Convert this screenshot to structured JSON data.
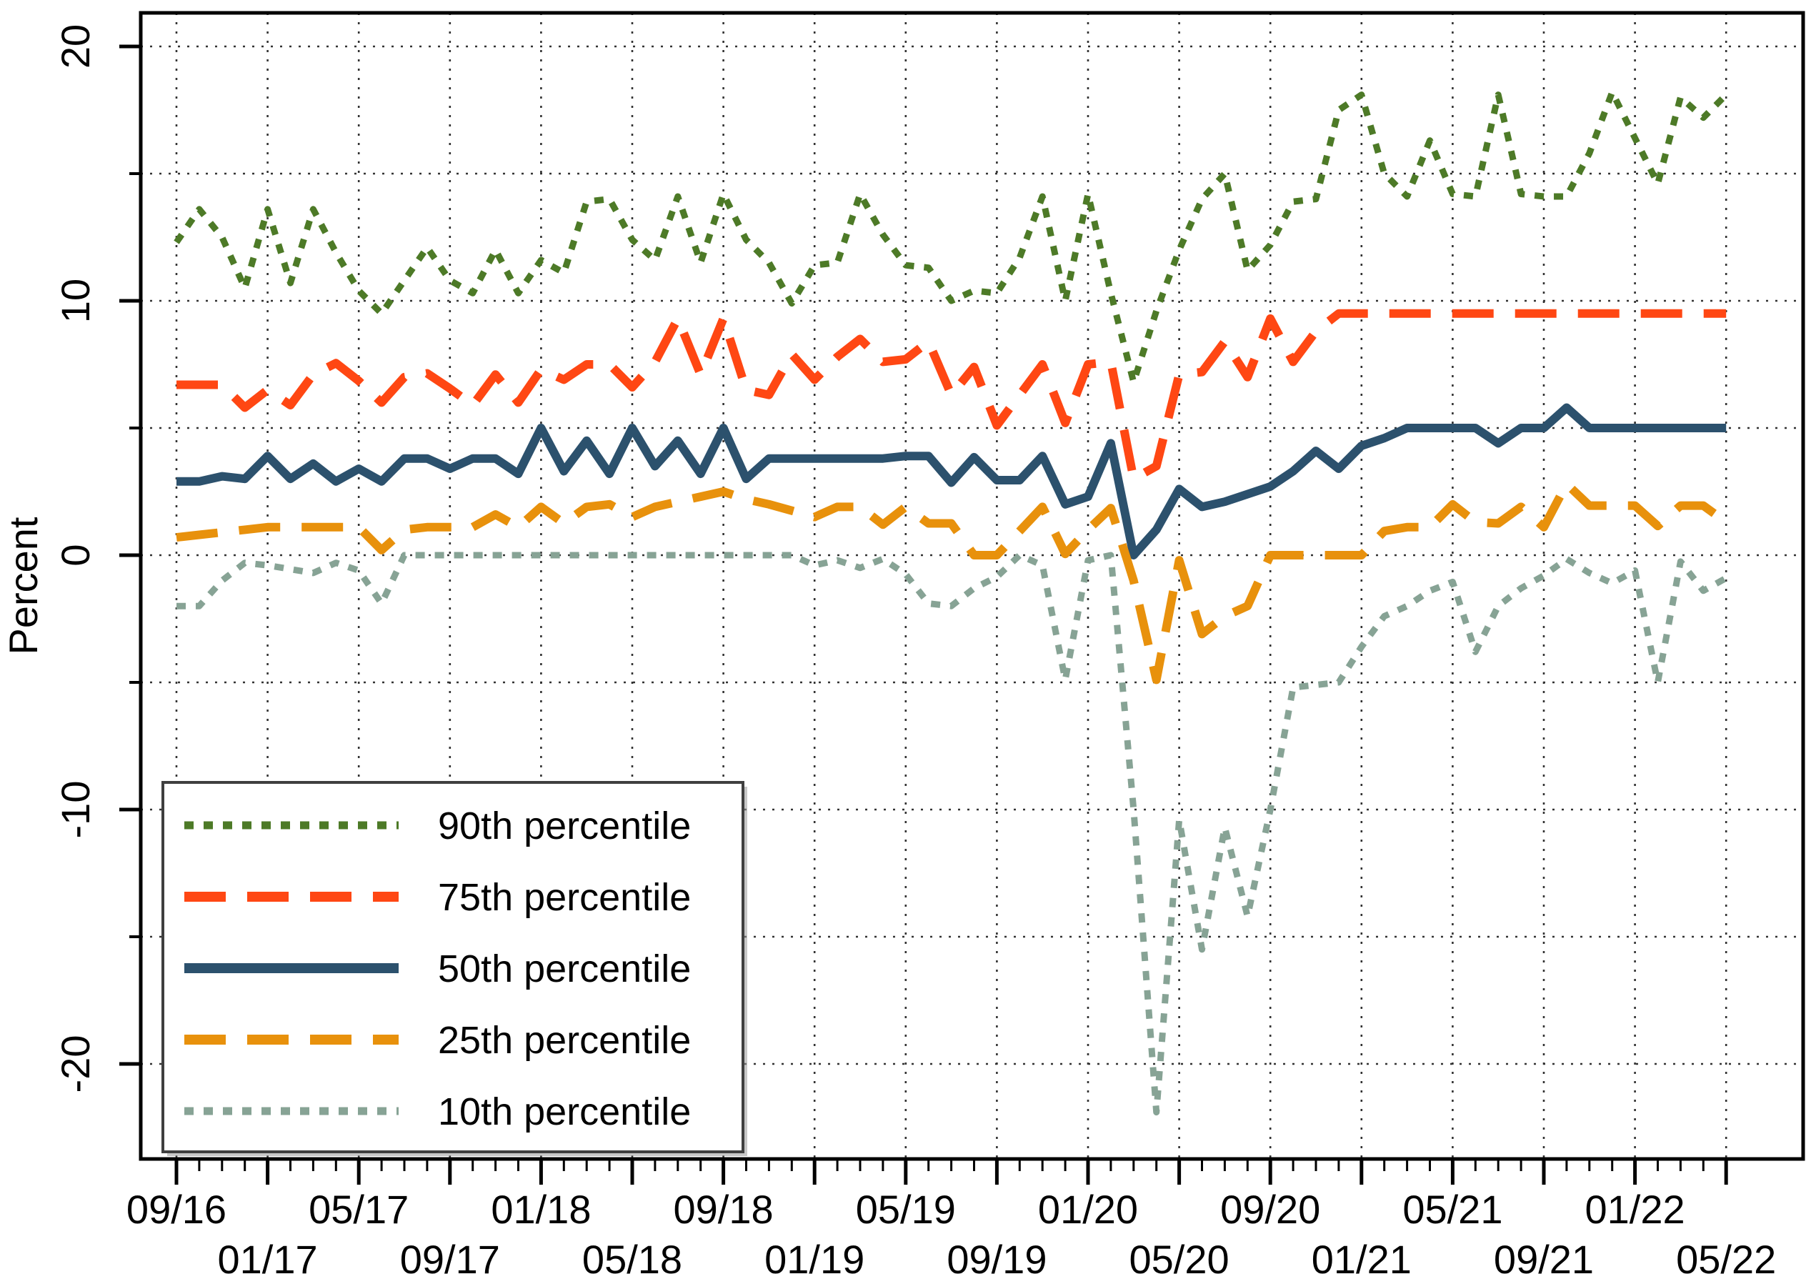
{
  "chart_data": {
    "type": "line",
    "title": "",
    "xlabel": "",
    "ylabel": "Percent",
    "grid": "dotted",
    "legend_position": "inside-bottom-left",
    "ylim": [
      -23.7,
      21.3
    ],
    "yticks_major": [
      20,
      10,
      0,
      -10,
      -20
    ],
    "ytick_labels": [
      "20",
      "10",
      "0",
      "-10",
      "-20"
    ],
    "yticks_minor": [
      15,
      5,
      -5,
      -15
    ],
    "x_tick_row1": {
      "labels": [
        "09/16",
        "05/17",
        "01/18",
        "09/18",
        "05/19",
        "01/20",
        "09/20",
        "05/21",
        "01/22"
      ],
      "month_index": [
        0,
        8,
        16,
        24,
        32,
        40,
        48,
        56,
        64
      ]
    },
    "x_tick_row2": {
      "labels": [
        "01/17",
        "09/17",
        "05/18",
        "01/19",
        "09/19",
        "05/20",
        "01/21",
        "09/21",
        "05/22"
      ],
      "month_index": [
        4,
        12,
        20,
        28,
        36,
        44,
        52,
        60,
        68
      ]
    },
    "x": [
      "09/16",
      "10/16",
      "11/16",
      "12/16",
      "01/17",
      "02/17",
      "03/17",
      "04/17",
      "05/17",
      "06/17",
      "07/17",
      "08/17",
      "09/17",
      "10/17",
      "11/17",
      "12/17",
      "01/18",
      "02/18",
      "03/18",
      "04/18",
      "05/18",
      "06/18",
      "07/18",
      "08/18",
      "09/18",
      "10/18",
      "11/18",
      "12/18",
      "01/19",
      "02/19",
      "03/19",
      "04/19",
      "05/19",
      "06/19",
      "07/19",
      "08/19",
      "09/19",
      "10/19",
      "11/19",
      "12/19",
      "01/20",
      "02/20",
      "03/20",
      "04/20",
      "05/20",
      "06/20",
      "07/20",
      "08/20",
      "09/20",
      "10/20",
      "11/20",
      "12/20",
      "01/21",
      "02/21",
      "03/21",
      "04/21",
      "05/21",
      "06/21",
      "07/21",
      "08/21",
      "09/21",
      "10/21",
      "11/21",
      "12/21",
      "01/22",
      "02/22",
      "03/22",
      "04/22",
      "05/22"
    ],
    "series": [
      {
        "name": "90th percentile",
        "color": "#4d7a27",
        "style": "dotted",
        "width": 9,
        "values": [
          12.3,
          13.6,
          12.5,
          10.5,
          13.6,
          10.7,
          13.6,
          11.9,
          10.4,
          9.5,
          10.8,
          12.1,
          10.8,
          10.3,
          12.0,
          10.3,
          11.6,
          11.1,
          13.9,
          14.0,
          12.4,
          11.6,
          14.1,
          11.5,
          14.2,
          12.4,
          11.5,
          9.9,
          11.4,
          11.5,
          14.2,
          12.6,
          11.4,
          11.3,
          10.0,
          10.4,
          10.3,
          11.7,
          14.1,
          10.0,
          14.2,
          10.3,
          6.8,
          9.6,
          12.0,
          14.0,
          15.0,
          11.2,
          12.2,
          13.9,
          14.0,
          17.5,
          18.1,
          15.0,
          14.1,
          16.3,
          14.2,
          14.1,
          18.1,
          14.2,
          14.1,
          14.1,
          15.8,
          18.2,
          16.4,
          14.6,
          18.0,
          17.2,
          18.1
        ]
      },
      {
        "name": "75th percentile",
        "color": "#ff4713",
        "style": "longdash",
        "width": 12,
        "values": [
          6.7,
          6.7,
          6.7,
          5.8,
          6.5,
          5.9,
          7.1,
          7.55,
          6.85,
          6.0,
          7.0,
          7.15,
          6.55,
          5.9,
          7.1,
          6.0,
          7.3,
          6.9,
          7.5,
          7.5,
          6.6,
          7.6,
          9.3,
          7.1,
          9.3,
          6.5,
          6.3,
          7.9,
          6.9,
          7.8,
          8.5,
          7.6,
          7.7,
          8.4,
          6.3,
          7.4,
          5.1,
          6.3,
          7.5,
          5.2,
          7.5,
          7.6,
          3.0,
          3.5,
          7.1,
          7.2,
          8.4,
          7.0,
          9.3,
          7.6,
          8.8,
          9.5,
          9.5,
          9.5,
          9.5,
          9.5,
          9.5,
          9.5,
          9.5,
          9.5,
          9.5,
          9.5,
          9.5,
          9.5,
          9.5,
          9.5,
          9.5,
          9.5,
          9.5
        ]
      },
      {
        "name": "50th percentile",
        "color": "#2c516d",
        "style": "solid",
        "width": 12,
        "values": [
          2.9,
          2.9,
          3.1,
          3.0,
          3.9,
          3.0,
          3.6,
          2.9,
          3.4,
          2.9,
          3.8,
          3.8,
          3.4,
          3.8,
          3.8,
          3.2,
          5.0,
          3.3,
          4.5,
          3.2,
          5.0,
          3.5,
          4.5,
          3.2,
          5.0,
          3.0,
          3.8,
          3.8,
          3.8,
          3.8,
          3.8,
          3.8,
          3.9,
          3.9,
          2.85,
          3.85,
          2.95,
          2.95,
          3.9,
          2.0,
          2.3,
          4.4,
          0.0,
          1.0,
          2.6,
          1.9,
          2.1,
          2.4,
          2.7,
          3.3,
          4.1,
          3.4,
          4.3,
          4.6,
          5.0,
          5.0,
          5.0,
          5.0,
          4.4,
          5.0,
          5.0,
          5.8,
          5.0,
          5.0,
          5.0,
          5.0,
          5.0,
          5.0,
          5.0
        ]
      },
      {
        "name": "25th percentile",
        "color": "#e8910c",
        "style": "longdash",
        "width": 12,
        "values": [
          0.7,
          0.8,
          0.9,
          1.0,
          1.1,
          1.1,
          1.1,
          1.1,
          1.1,
          0.2,
          1.0,
          1.1,
          1.1,
          1.1,
          1.6,
          1.1,
          1.9,
          1.25,
          1.9,
          2.0,
          1.5,
          1.9,
          2.1,
          2.3,
          2.5,
          2.2,
          2.0,
          1.75,
          1.5,
          1.9,
          1.9,
          1.2,
          1.9,
          1.25,
          1.25,
          0.0,
          0.0,
          0.95,
          1.9,
          0.05,
          1.0,
          1.85,
          -1.0,
          -4.9,
          -0.2,
          -3.1,
          -2.4,
          -2.0,
          0.0,
          0.0,
          0.0,
          0.0,
          0.0,
          0.95,
          1.1,
          1.1,
          2.0,
          1.3,
          1.25,
          1.9,
          1.1,
          2.8,
          1.95,
          1.95,
          1.95,
          1.15,
          1.95,
          1.95,
          1.3
        ]
      },
      {
        "name": "10th percentile",
        "color": "#87a395",
        "style": "dotted",
        "width": 9,
        "values": [
          -2.0,
          -2.0,
          -1.0,
          -0.3,
          -0.4,
          -0.55,
          -0.7,
          -0.3,
          -0.6,
          -1.9,
          0.0,
          0.0,
          0.0,
          0.0,
          0.0,
          0.0,
          0.0,
          0.0,
          0.0,
          0.0,
          0.0,
          0.0,
          0.0,
          0.0,
          0.0,
          0.0,
          0.0,
          0.0,
          -0.4,
          -0.2,
          -0.5,
          -0.15,
          -0.75,
          -1.9,
          -2.0,
          -1.3,
          -0.85,
          0.0,
          -0.4,
          -4.9,
          -0.2,
          0.0,
          -10.0,
          -21.9,
          -10.4,
          -15.5,
          -10.7,
          -14.2,
          -10.0,
          -5.2,
          -5.1,
          -5.0,
          -3.6,
          -2.4,
          -2.0,
          -1.4,
          -1.05,
          -3.8,
          -2.0,
          -1.3,
          -0.8,
          -0.15,
          -0.7,
          -1.1,
          -0.6,
          -5.0,
          -0.25,
          -1.4,
          -0.9
        ]
      }
    ],
    "legend_items": [
      "90th percentile",
      "75th percentile",
      "50th percentile",
      "25th percentile",
      "10th percentile"
    ]
  },
  "layout_colors": {
    "background": "#ffffff",
    "axis": "#000000",
    "gridline": "#333333",
    "legend_border": "#3f3f3f"
  }
}
